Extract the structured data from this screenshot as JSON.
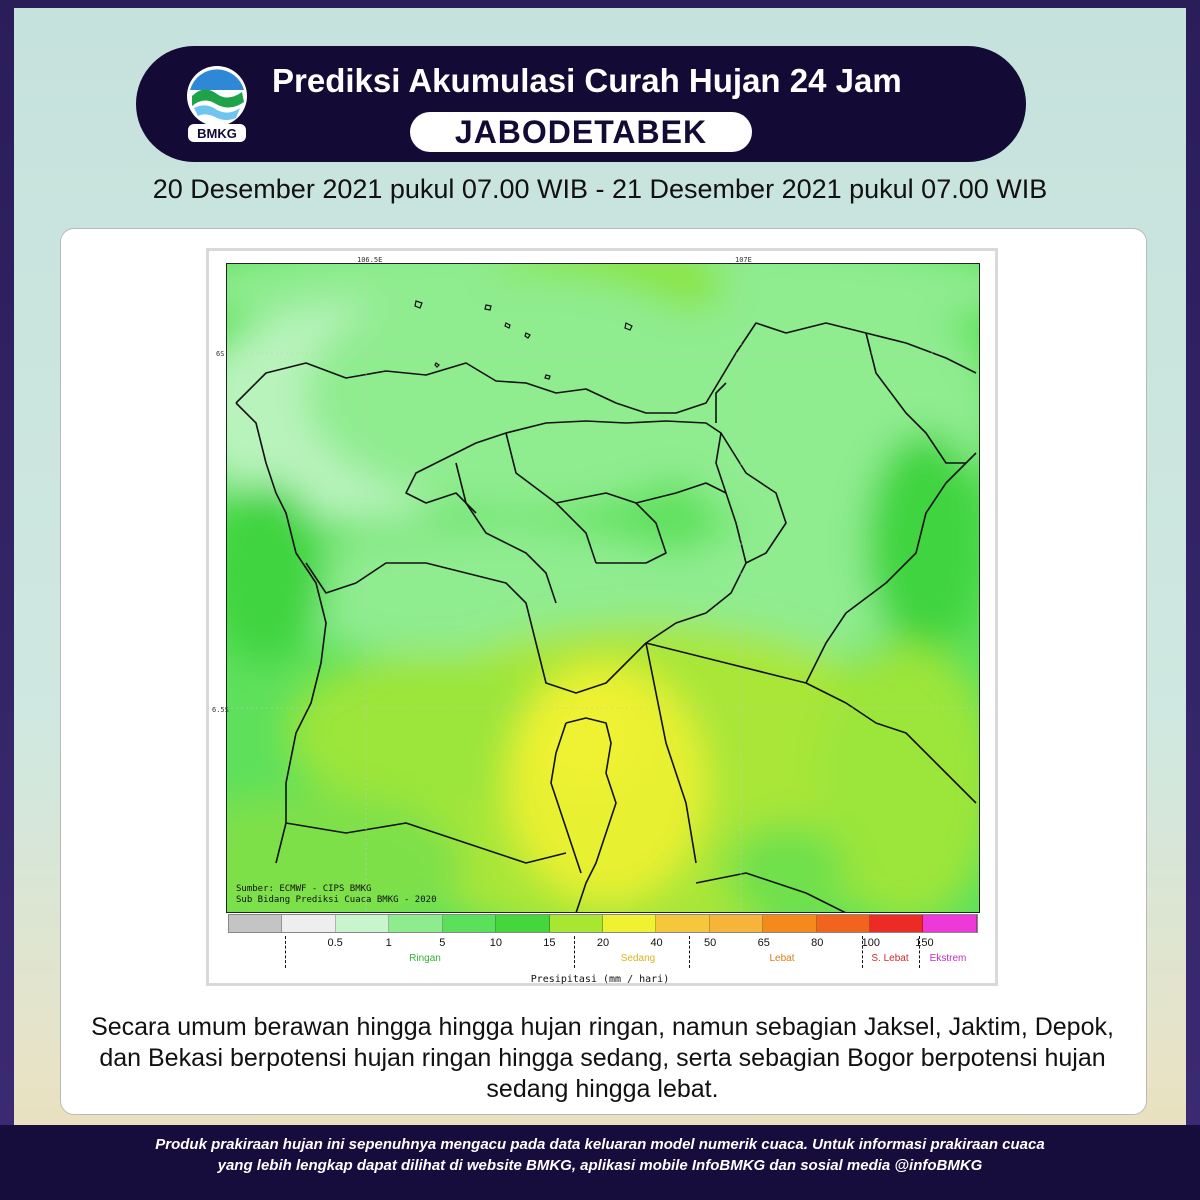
{
  "header": {
    "logo_text": "BMKG",
    "title": "Prediksi Akumulasi Curah Hujan 24 Jam",
    "region": "JABODETABEK",
    "date_range": "20 Desember 2021 pukul 07.00 WIB - 21 Desember 2021 pukul 07.00 WIB"
  },
  "map": {
    "axis_labels": {
      "lon1": "106.5E",
      "lon2": "107E",
      "lat1": "6S",
      "lat2": "6.5S"
    },
    "credit_line1": "Sumber: ECMWF - CIPS BMKG",
    "credit_line2": "Sub Bidang Prediksi Cuaca BMKG - 2020"
  },
  "legend": {
    "colors": [
      "#c4c4c4",
      "#eeeeee",
      "#c9f5cc",
      "#8ded8e",
      "#5ae05a",
      "#45d63c",
      "#a8e632",
      "#eef230",
      "#f4c83a",
      "#f6b53a",
      "#f48a1c",
      "#f06420",
      "#ec2a26",
      "#ee39d8"
    ],
    "ticks": [
      "0.5",
      "1",
      "5",
      "10",
      "15",
      "20",
      "40",
      "50",
      "65",
      "80",
      "100",
      "150"
    ],
    "categories": [
      {
        "label": "Ringan",
        "color": "#36b336"
      },
      {
        "label": "Sedang",
        "color": "#d9b51c"
      },
      {
        "label": "Lebat",
        "color": "#e07b1a"
      },
      {
        "label": "S. Lebat",
        "color": "#d82a2a"
      },
      {
        "label": "Ekstrem",
        "color": "#c42dc4"
      }
    ],
    "axis_title": "Presipitasi (mm / hari)"
  },
  "summary": "Secara umum berawan hingga hingga hujan ringan, namun sebagian Jaksel, Jaktim, Depok, dan Bekasi berpotensi hujan ringan hingga sedang, serta sebagian Bogor berpotensi hujan sedang hingga lebat.",
  "footer": {
    "line1": "Produk prakiraan hujan ini sepenuhnya mengacu pada data keluaran model numerik cuaca. Untuk informasi prakiraan cuaca",
    "line2": "yang lebih lengkap dapat dilihat di website BMKG, aplikasi mobile InfoBMKG dan sosial media @infoBMKG"
  }
}
